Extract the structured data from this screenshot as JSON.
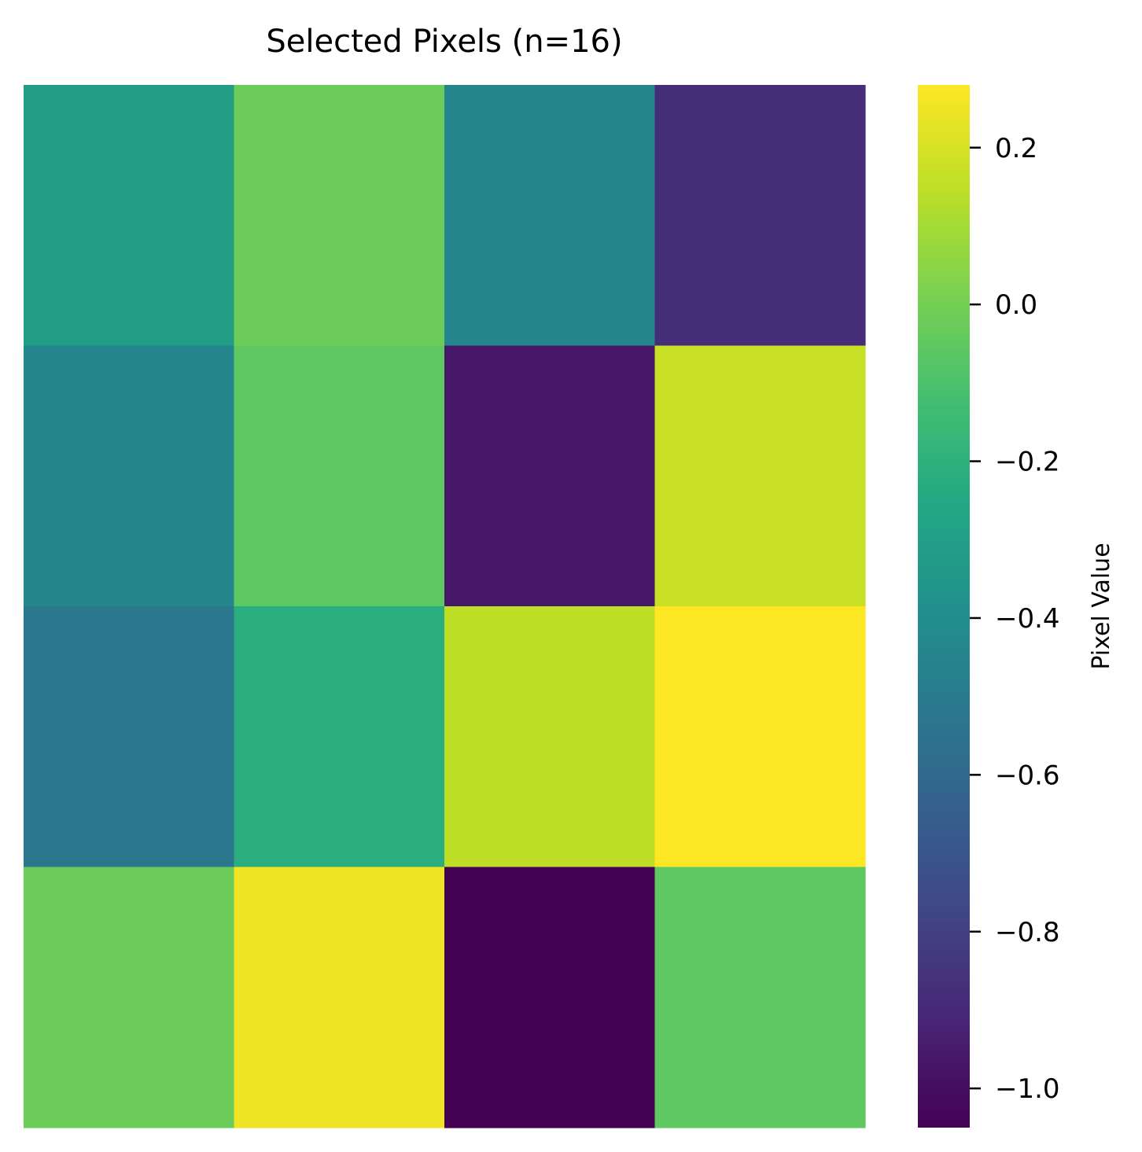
{
  "chart_data": {
    "type": "heatmap",
    "title": "Selected Pixels (n=16)",
    "colormap": "viridis",
    "rows": 4,
    "cols": 4,
    "values": [
      [
        -0.31,
        -0.02,
        -0.45,
        -0.88
      ],
      [
        -0.44,
        -0.05,
        -0.97,
        0.17
      ],
      [
        -0.52,
        -0.22,
        0.15,
        0.28
      ],
      [
        -0.02,
        0.25,
        -1.05,
        -0.05
      ]
    ],
    "colorbar": {
      "label": "Pixel Value",
      "vmin": -1.05,
      "vmax": 0.28,
      "ticks": [
        0.2,
        0.0,
        -0.2,
        -0.4,
        -0.6,
        -0.8,
        -1.0
      ],
      "tick_labels": [
        "0.2",
        "0.0",
        "−0.2",
        "−0.4",
        "−0.6",
        "−0.8",
        "−1.0"
      ]
    },
    "axes": {
      "x_ticks": "none",
      "y_ticks": "none",
      "grid": false
    }
  }
}
